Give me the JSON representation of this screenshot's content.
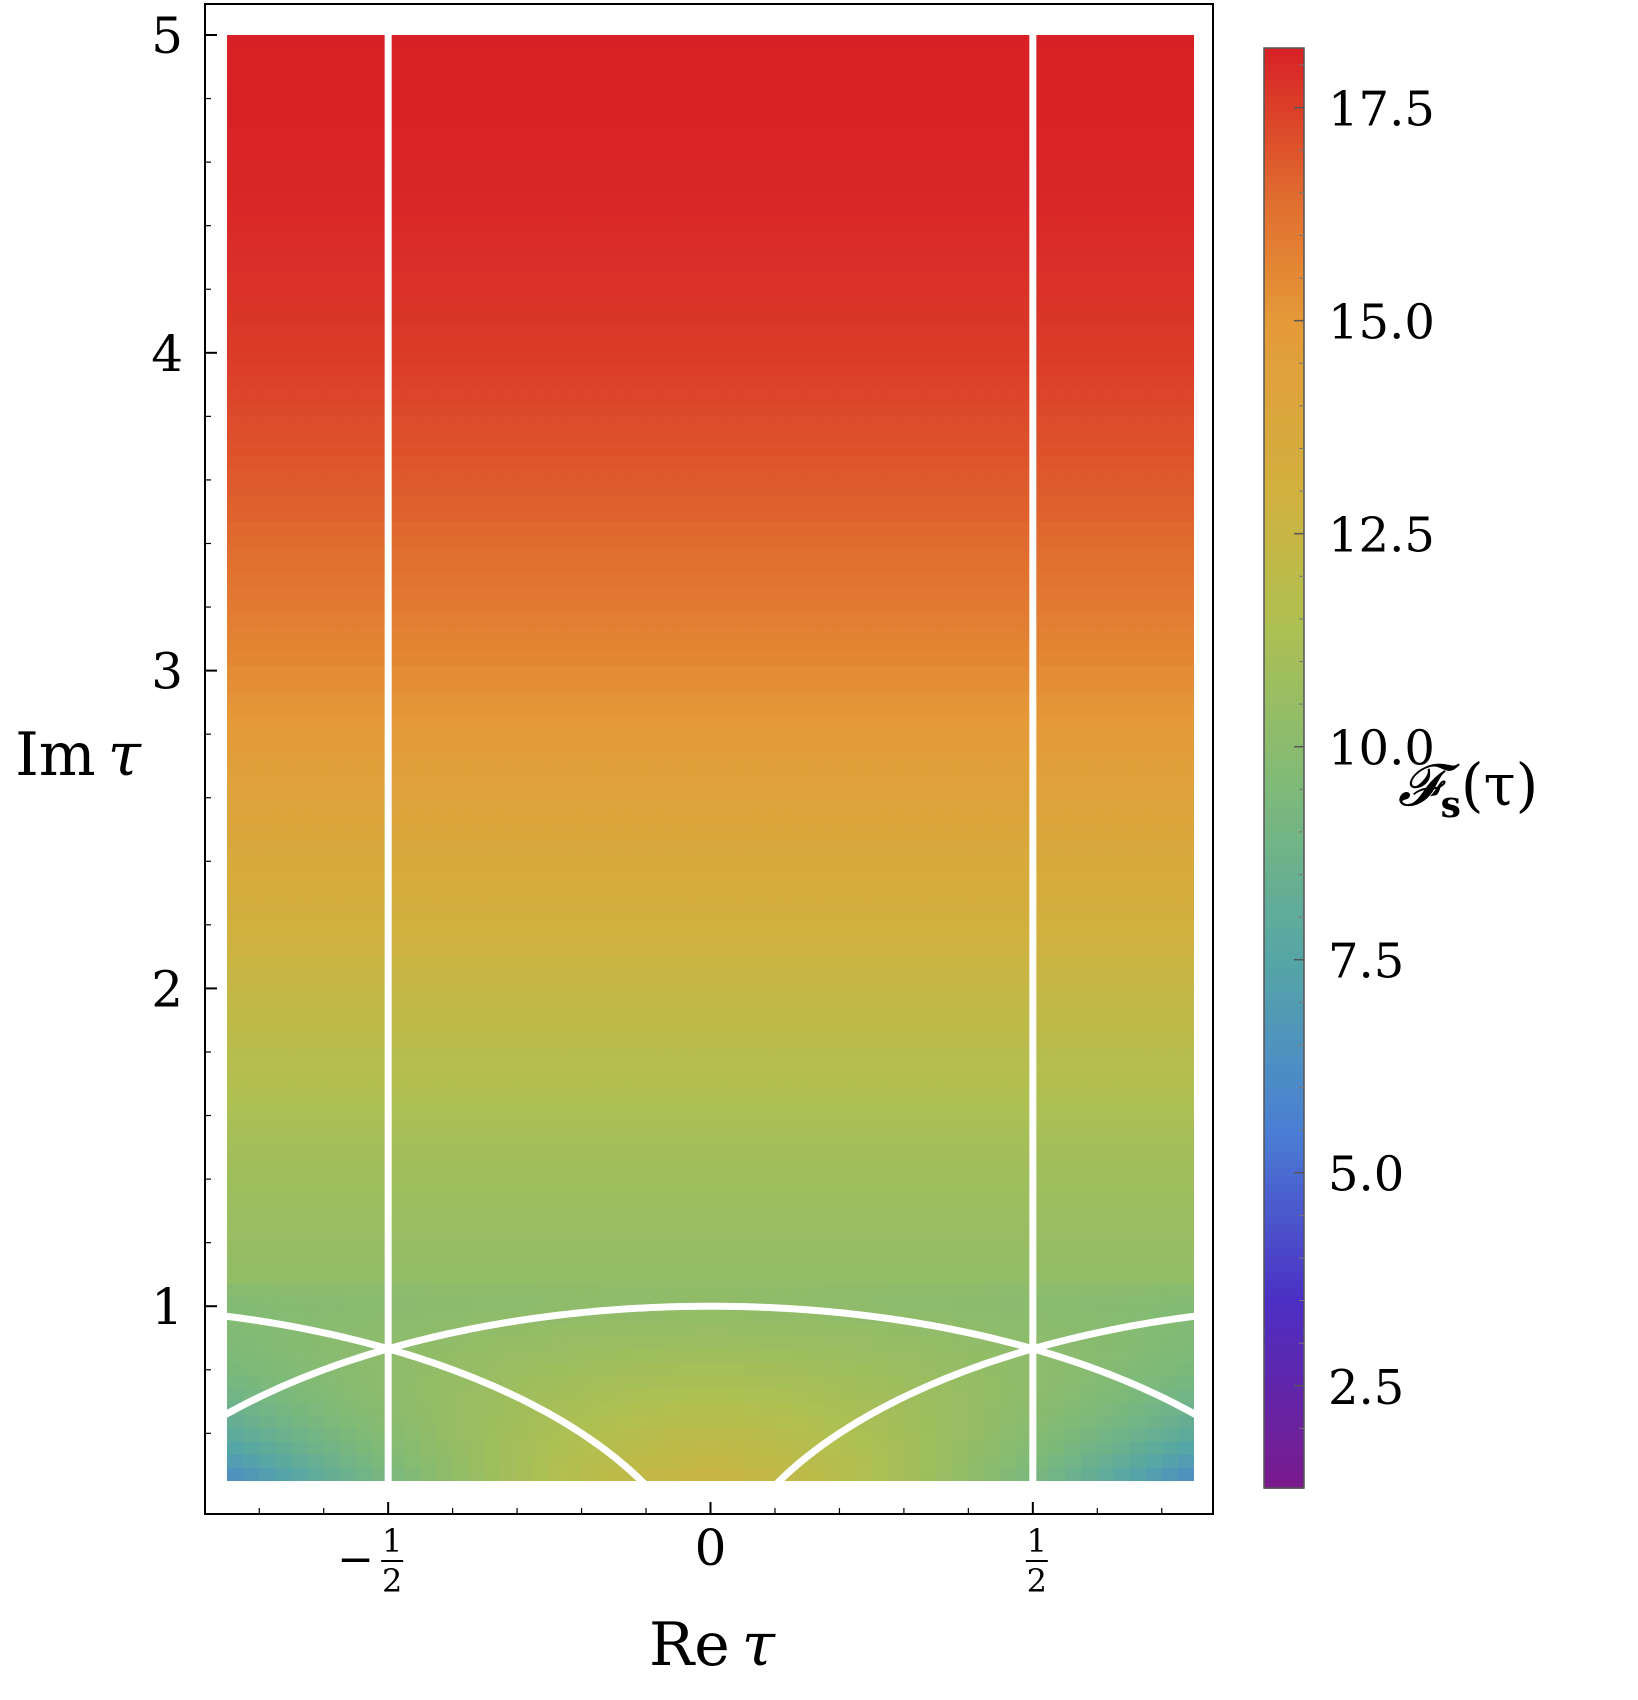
{
  "chart_data": {
    "type": "heatmap",
    "title": "",
    "xlabel_main": "Re",
    "xlabel_var": "τ",
    "ylabel_main": "Im",
    "ylabel_var": "τ",
    "xlim": [
      -0.75,
      0.75
    ],
    "ylim": [
      0.45,
      5
    ],
    "x_ticks": [
      {
        "value": -0.5,
        "sign": "−",
        "numerator": "1",
        "denominator": "2"
      },
      {
        "value": 0,
        "label": "0"
      },
      {
        "value": 0.5,
        "sign": "",
        "numerator": "1",
        "denominator": "2"
      }
    ],
    "y_ticks": [
      {
        "value": 1,
        "label": "1"
      },
      {
        "value": 2,
        "label": "2"
      },
      {
        "value": 3,
        "label": "3"
      },
      {
        "value": 4,
        "label": "4"
      },
      {
        "value": 5,
        "label": "5"
      }
    ],
    "colorbar": {
      "label_main": "𝓕",
      "label_sub": "s",
      "label_arg": "(τ)",
      "range": [
        1.3,
        18.2
      ],
      "ticks": [
        {
          "value": 2.5,
          "label": "2.5"
        },
        {
          "value": 5.0,
          "label": "5.0"
        },
        {
          "value": 7.5,
          "label": "7.5"
        },
        {
          "value": 10.0,
          "label": "10.0"
        },
        {
          "value": 12.5,
          "label": "12.5"
        },
        {
          "value": 15.0,
          "label": "15.0"
        },
        {
          "value": 17.5,
          "label": "17.5"
        }
      ],
      "stops": [
        {
          "value": 1.3,
          "color": "#7a1a8c"
        },
        {
          "value": 3.5,
          "color": "#4b2fc4"
        },
        {
          "value": 5.5,
          "color": "#4a7fd4"
        },
        {
          "value": 7.5,
          "color": "#55a6a6"
        },
        {
          "value": 9.5,
          "color": "#7eba78"
        },
        {
          "value": 11.5,
          "color": "#b0c050"
        },
        {
          "value": 13.0,
          "color": "#d2b03e"
        },
        {
          "value": 15.0,
          "color": "#e59a38"
        },
        {
          "value": 16.5,
          "color": "#e06a2e"
        },
        {
          "value": 18.2,
          "color": "#d82126"
        }
      ]
    },
    "field_profile": {
      "center_values": [
        {
          "y": 0.45,
          "value": 12.6
        },
        {
          "y": 0.7,
          "value": 11.5
        },
        {
          "y": 1.0,
          "value": 10.2
        },
        {
          "y": 1.5,
          "value": 11.0
        },
        {
          "y": 2.0,
          "value": 12.4
        },
        {
          "y": 2.5,
          "value": 13.9
        },
        {
          "y": 3.0,
          "value": 15.5
        },
        {
          "y": 3.5,
          "value": 16.7
        },
        {
          "y": 4.0,
          "value": 17.6
        },
        {
          "y": 4.5,
          "value": 18.1
        },
        {
          "y": 5.0,
          "value": 18.2
        }
      ],
      "corner_value": 6.0
    },
    "boundaries": {
      "vertical_lines": [
        -0.5,
        0.5
      ],
      "unit_circle_centers": [
        -1,
        0,
        1
      ],
      "radius": 1,
      "color": "#ffffff"
    },
    "grid": false,
    "legend": "none"
  }
}
